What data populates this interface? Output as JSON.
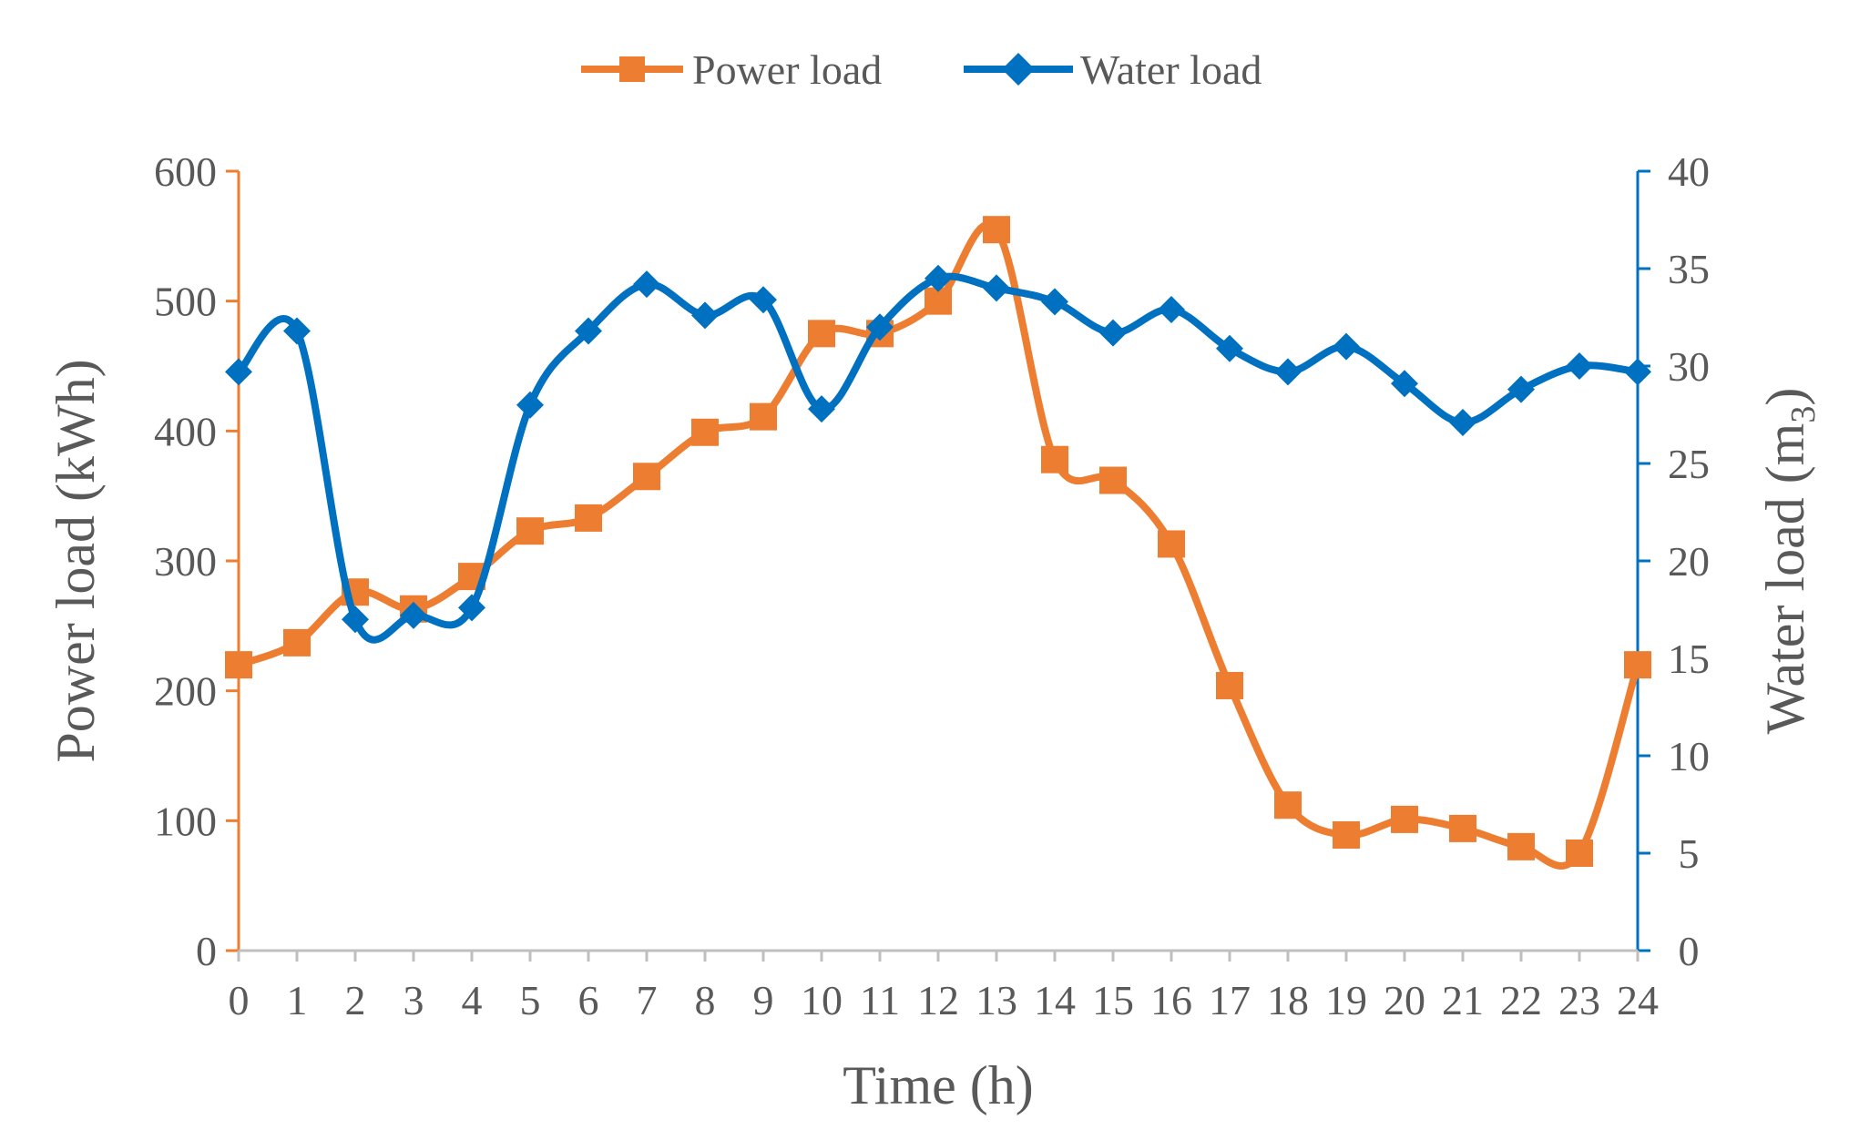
{
  "chart_data": {
    "type": "line",
    "title": "",
    "xlabel": "Time (h)",
    "ylabel": "Power load (kWh)",
    "y2label": "Water load (m",
    "y2label_sub": "3",
    "y2label_close": ")",
    "x": [
      0,
      1,
      2,
      3,
      4,
      5,
      6,
      7,
      8,
      9,
      10,
      11,
      12,
      13,
      14,
      15,
      16,
      17,
      18,
      19,
      20,
      21,
      22,
      23,
      24
    ],
    "xticks": [
      "0",
      "1",
      "2",
      "3",
      "4",
      "5",
      "6",
      "7",
      "8",
      "9",
      "10",
      "11",
      "12",
      "13",
      "14",
      "15",
      "16",
      "17",
      "18",
      "19",
      "20",
      "21",
      "22",
      "23",
      "24"
    ],
    "ylim": [
      0,
      600
    ],
    "yticks": [
      "0",
      "100",
      "200",
      "300",
      "400",
      "500",
      "600"
    ],
    "y2lim": [
      0,
      40
    ],
    "y2ticks": [
      "0",
      "5",
      "10",
      "15",
      "20",
      "25",
      "30",
      "35",
      "40"
    ],
    "legend_position": "top-center",
    "series": [
      {
        "name": "Power load",
        "axis": "left",
        "marker": "square",
        "color": "#ED7D31",
        "values": [
          220,
          237,
          276,
          263,
          288,
          323,
          333,
          365,
          399,
          411,
          475,
          475,
          500,
          555,
          378,
          362,
          313,
          204,
          112,
          89,
          101,
          94,
          80,
          75,
          220
        ]
      },
      {
        "name": "Water load",
        "axis": "right",
        "marker": "diamond",
        "color": "#0070C0",
        "values": [
          29.7,
          31.8,
          17,
          17.2,
          17.6,
          28,
          31.8,
          34.2,
          32.6,
          33.4,
          27.8,
          32,
          34.5,
          34,
          33.3,
          31.7,
          32.9,
          30.9,
          29.7,
          31,
          29.1,
          27.1,
          28.8,
          30,
          29.7
        ]
      }
    ],
    "axis_colors": {
      "left": "#ED7D31",
      "right": "#0070C0",
      "bottom": "#BFBFBF"
    }
  }
}
